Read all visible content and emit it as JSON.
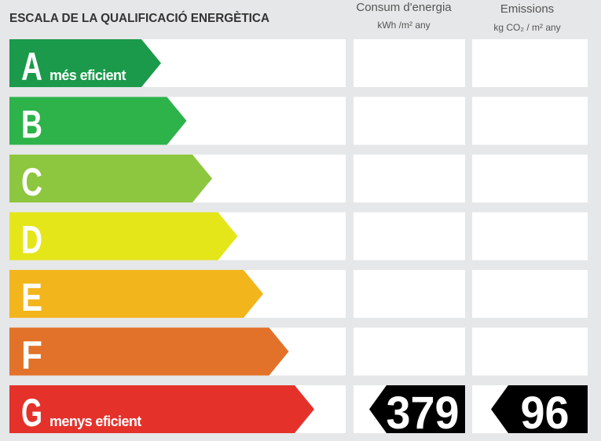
{
  "header": {
    "title": "ESCALA DE LA QUALIFICACIÓ ENERGÈTICA",
    "columns": [
      {
        "title": "Consum d'energia",
        "unit": "kWh /m² any"
      },
      {
        "title": "Emissions",
        "unit": "kg CO₂ / m² any"
      }
    ]
  },
  "scale": [
    {
      "letter": "A",
      "label": "més eficient",
      "color": "#1a9a4a"
    },
    {
      "letter": "B",
      "color": "#2db34a"
    },
    {
      "letter": "C",
      "color": "#8dc63f"
    },
    {
      "letter": "D",
      "color": "#e4e61a"
    },
    {
      "letter": "E",
      "color": "#f2b51b"
    },
    {
      "letter": "F",
      "color": "#e2722a"
    },
    {
      "letter": "G",
      "label": "menys eficient",
      "color": "#e4322b",
      "consumption": 379,
      "emissions": 96
    }
  ]
}
